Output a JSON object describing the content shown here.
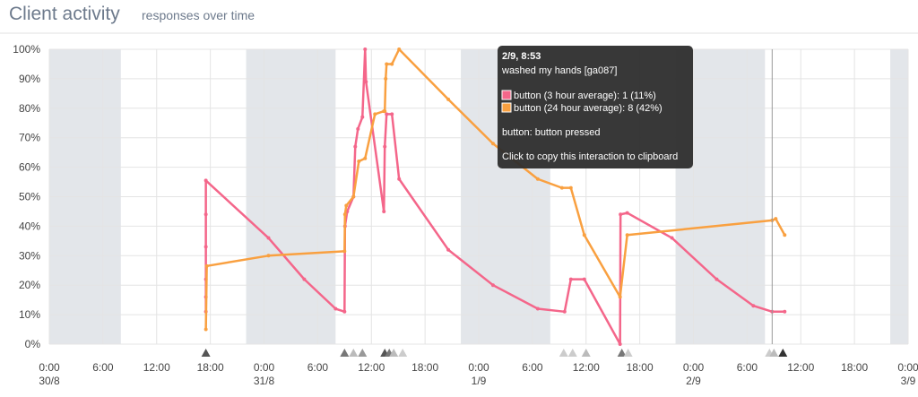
{
  "chart_data": {
    "type": "line",
    "title": "Client activity",
    "subtitle": "responses over time",
    "xlim": [
      0,
      96
    ],
    "xticks": [
      {
        "value": 0,
        "label": "0:00"
      },
      {
        "value": 6,
        "label": "6:00"
      },
      {
        "value": 12,
        "label": "12:00"
      },
      {
        "value": 18,
        "label": "18:00"
      },
      {
        "value": 24,
        "label": "0:00"
      },
      {
        "value": 30,
        "label": "6:00"
      },
      {
        "value": 36,
        "label": "12:00"
      },
      {
        "value": 42,
        "label": "18:00"
      },
      {
        "value": 48,
        "label": "0:00"
      },
      {
        "value": 54,
        "label": "6:00"
      },
      {
        "value": 60,
        "label": "12:00"
      },
      {
        "value": 66,
        "label": "18:00"
      },
      {
        "value": 72,
        "label": "0:00"
      },
      {
        "value": 78,
        "label": "6:00"
      },
      {
        "value": 84,
        "label": "12:00"
      },
      {
        "value": 90,
        "label": "18:00"
      },
      {
        "value": 96,
        "label": "0:00"
      }
    ],
    "xdate_ticks": [
      {
        "value": 0,
        "label": "30/8"
      },
      {
        "value": 24,
        "label": "31/8"
      },
      {
        "value": 48,
        "label": "1/9"
      },
      {
        "value": 72,
        "label": "2/9"
      },
      {
        "value": 96,
        "label": "3/9"
      }
    ],
    "ylim": [
      0,
      100
    ],
    "yticks": [
      {
        "value": 0,
        "label": "0%"
      },
      {
        "value": 10,
        "label": "10%"
      },
      {
        "value": 20,
        "label": "20%"
      },
      {
        "value": 30,
        "label": "30%"
      },
      {
        "value": 40,
        "label": "40%"
      },
      {
        "value": 50,
        "label": "50%"
      },
      {
        "value": 60,
        "label": "60%"
      },
      {
        "value": 70,
        "label": "70%"
      },
      {
        "value": 80,
        "label": "80%"
      },
      {
        "value": 90,
        "label": "90%"
      },
      {
        "value": 100,
        "label": "100%"
      }
    ],
    "grid": true,
    "shaded_ranges": [
      [
        0,
        8
      ],
      [
        22,
        32
      ],
      [
        46,
        56
      ],
      [
        70,
        80
      ],
      [
        94,
        96
      ]
    ],
    "series": [
      {
        "name": "button (3 hour average)",
        "color": "#f4668a",
        "x": [
          17.5,
          17.5,
          17.5,
          17.5,
          17.5,
          17.5,
          24.5,
          28.5,
          32,
          33,
          33.05,
          33.3,
          34,
          34.2,
          34.5,
          35,
          35.3,
          35.4,
          37.4,
          37.5,
          37.7,
          38.3,
          39.1,
          44.6,
          49.6,
          54.6,
          57.6,
          58.3,
          59.8,
          63.8,
          63.85,
          64.6,
          69.6,
          74.6,
          78.7,
          80.8,
          82.2
        ],
        "values": [
          11,
          16,
          22,
          33,
          44,
          55.5,
          36,
          22,
          12,
          11,
          40,
          45,
          50,
          67,
          73,
          77,
          100,
          89,
          45,
          67,
          78,
          78,
          56,
          32,
          20,
          12,
          11,
          22,
          22,
          0,
          44,
          44.5,
          36,
          22,
          13,
          11,
          11
        ]
      },
      {
        "name": "button (24 hour average)",
        "color": "#f9a040",
        "x": [
          17.5,
          17.6,
          24.5,
          33,
          33.05,
          33.2,
          34,
          34.6,
          35.3,
          36.4,
          37.4,
          37.5,
          37.6,
          37.7,
          38.3,
          39.1,
          44.6,
          49.6,
          54.6,
          57.3,
          58.3,
          59.8,
          63.8,
          64.6,
          80.8,
          81.2,
          82.2
        ],
        "values": [
          5,
          26.5,
          30,
          31.5,
          44,
          47,
          50,
          62,
          63,
          78,
          79,
          79,
          90,
          95,
          95,
          100,
          83,
          68,
          56,
          53,
          53,
          37,
          16,
          37,
          42,
          42.5,
          37
        ]
      }
    ],
    "events": [
      {
        "x": 17.5,
        "color": "#555555"
      },
      {
        "x": 33,
        "color": "#777777"
      },
      {
        "x": 34,
        "color": "#bbbbbb"
      },
      {
        "x": 35,
        "color": "#999999"
      },
      {
        "x": 37.5,
        "color": "#555555"
      },
      {
        "x": 38,
        "color": "#777777"
      },
      {
        "x": 38.5,
        "color": "#bbbbbb"
      },
      {
        "x": 39.5,
        "color": "#cccccc"
      },
      {
        "x": 57.5,
        "color": "#cccccc"
      },
      {
        "x": 58.5,
        "color": "#cccccc"
      },
      {
        "x": 60,
        "color": "#bbbbbb"
      },
      {
        "x": 64,
        "color": "#777777"
      },
      {
        "x": 64.7,
        "color": "#cccccc"
      },
      {
        "x": 80.5,
        "color": "#cccccc"
      },
      {
        "x": 81,
        "color": "#bbbbbb"
      },
      {
        "x": 82,
        "color": "#333333"
      }
    ],
    "cursor_x": 80.8,
    "tooltip": {
      "title": "2/9, 8:53",
      "subject": "washed my hands [ga087]",
      "lines": [
        "button (3 hour average): 1 (11%)",
        "button (24 hour average): 8 (42%)"
      ],
      "detail": "button: button pressed",
      "hint": "Click to copy this interaction to clipboard"
    }
  }
}
